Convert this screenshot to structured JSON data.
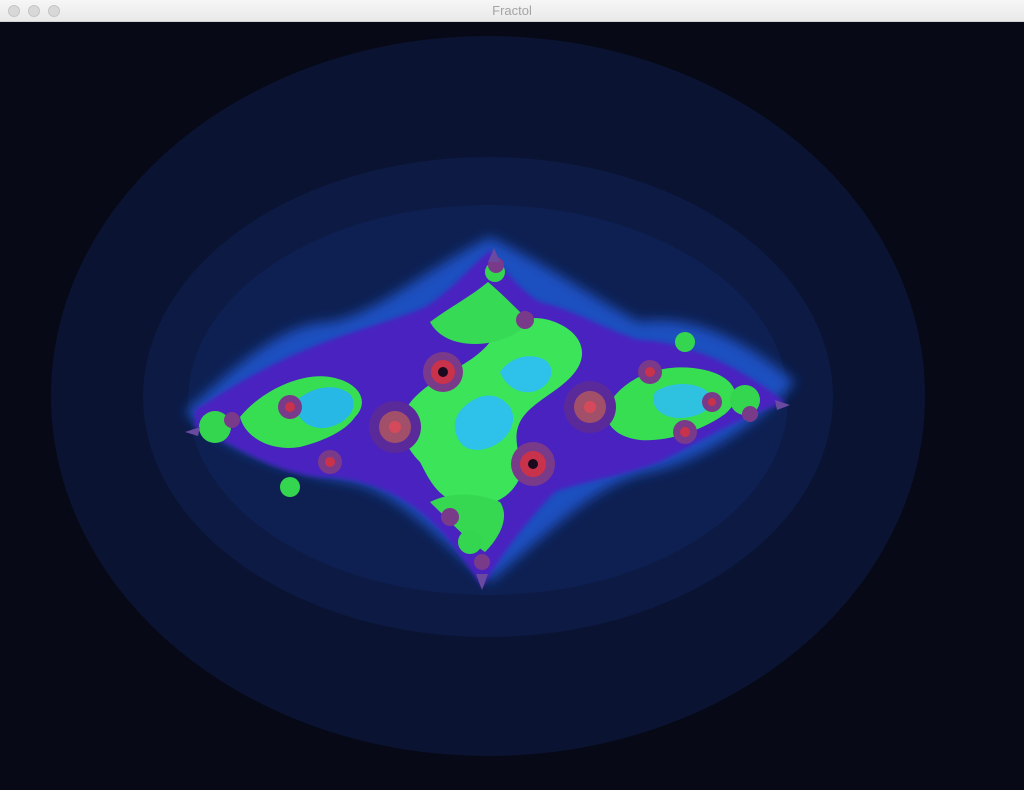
{
  "window": {
    "title": "Fractol",
    "controls": {
      "close_icon": "close-traffic-light-icon",
      "minimize_icon": "minimize-traffic-light-icon",
      "zoom_icon": "zoom-traffic-light-icon"
    }
  },
  "fractal": {
    "kind": "julia",
    "colors": {
      "background": "#080a17",
      "outer_halo_1": "#0a1330",
      "outer_halo_2": "#0c1a42",
      "inner_glow": "#1f58d0",
      "body_green": "#33e34f",
      "body_cyan": "#2fb8e8",
      "edge_purple": "#5a1ec8",
      "speckle_red": "#c8324a"
    }
  }
}
